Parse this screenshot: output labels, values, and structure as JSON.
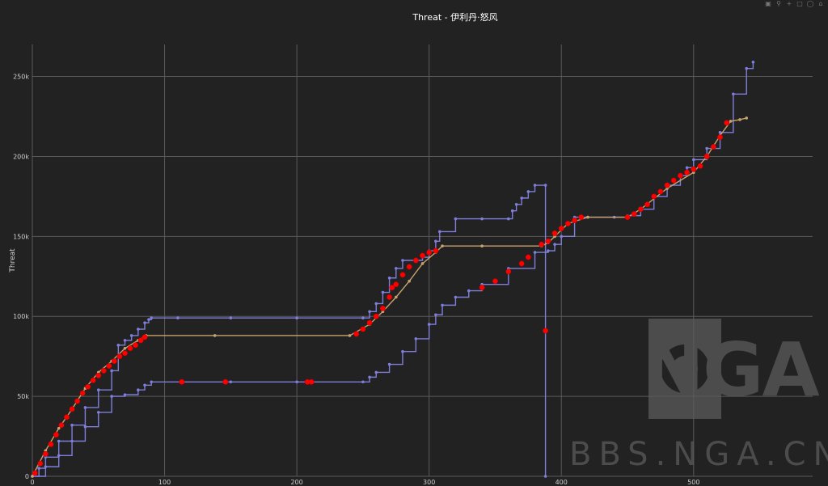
{
  "toolbar": {
    "icons": [
      "camera-icon",
      "zoom-icon",
      "plus-icon",
      "box-select-icon",
      "lasso-icon",
      "home-icon"
    ]
  },
  "watermark": {
    "logo": "NGA",
    "site": "BBS.NGA.CN"
  },
  "colors": {
    "blue": "#7f7fdb",
    "tan": "#c9a36e",
    "red": "#ff0000"
  },
  "chart_data": {
    "type": "line",
    "title": "Threat - 伊利丹·怒风",
    "xlabel": "",
    "ylabel": "Threat",
    "xlim": [
      0,
      590
    ],
    "ylim": [
      0,
      270000
    ],
    "x_ticks": [
      0,
      100,
      200,
      300,
      400,
      500
    ],
    "x_tick_labels": [
      "0",
      "100",
      "200",
      "300",
      "400",
      "500"
    ],
    "y_ticks": [
      0,
      50000,
      100000,
      150000,
      200000,
      250000
    ],
    "y_tick_labels": [
      "0",
      "50k",
      "100k",
      "150k",
      "200k",
      "250k"
    ],
    "grid": true,
    "series": [
      {
        "color": "#7f7fdb",
        "step": true,
        "x": [
          0,
          5,
          10,
          20,
          30,
          40,
          50,
          60,
          65,
          70,
          75,
          80,
          85,
          88,
          90,
          110,
          150,
          200,
          250,
          255,
          260,
          265,
          270,
          275,
          280,
          290,
          295,
          300,
          305,
          308,
          320,
          340,
          360,
          363,
          366,
          370,
          375,
          380,
          388,
          388
        ],
        "y": [
          0,
          5000,
          12000,
          22000,
          32000,
          43000,
          54000,
          66000,
          82000,
          85000,
          88000,
          92000,
          96000,
          98000,
          99000,
          99000,
          99000,
          99000,
          99000,
          103000,
          108000,
          115000,
          124000,
          130000,
          135000,
          135000,
          137000,
          141000,
          147000,
          153000,
          161000,
          161000,
          161000,
          166000,
          170000,
          174000,
          178000,
          182000,
          182000,
          0
        ]
      },
      {
        "color": "#7f7fdb",
        "step": true,
        "x": [
          0,
          10,
          20,
          30,
          40,
          50,
          60,
          70,
          80,
          85,
          90,
          150,
          200,
          250,
          255,
          260,
          270,
          280,
          290,
          300,
          305,
          310,
          320,
          330,
          340,
          360,
          380,
          390,
          395,
          400,
          410,
          420,
          440,
          450,
          460,
          470,
          480,
          490,
          495,
          500,
          510,
          520,
          530,
          540,
          545
        ],
        "y": [
          0,
          6000,
          13000,
          22000,
          31000,
          40000,
          50000,
          51000,
          54000,
          57000,
          59000,
          59000,
          59000,
          59000,
          62000,
          65000,
          70000,
          78000,
          86000,
          95000,
          101000,
          107000,
          112000,
          116000,
          120000,
          130000,
          140000,
          141000,
          145000,
          150000,
          162000,
          162000,
          162000,
          163000,
          167000,
          175000,
          182000,
          188000,
          193000,
          198000,
          205000,
          215000,
          239000,
          255000,
          259000
        ]
      },
      {
        "color": "#c9a36e",
        "step": false,
        "x": [
          0,
          10,
          20,
          30,
          40,
          50,
          60,
          70,
          80,
          86,
          138,
          240,
          255,
          265,
          275,
          285,
          295,
          305,
          310,
          340,
          385,
          390,
          395,
          405,
          420,
          450,
          460,
          480,
          500,
          510,
          520,
          528,
          535,
          540
        ],
        "y": [
          0,
          16000,
          30000,
          42000,
          55000,
          65000,
          72000,
          80000,
          85000,
          88000,
          88000,
          88000,
          95000,
          103000,
          112000,
          122000,
          133000,
          140000,
          144000,
          144000,
          144000,
          146000,
          150000,
          158000,
          162000,
          162000,
          167000,
          180000,
          190000,
          200000,
          213000,
          222000,
          223000,
          224000
        ]
      }
    ],
    "markers": {
      "color": "#ff0000",
      "x": [
        2,
        6,
        10,
        14,
        18,
        22,
        26,
        30,
        34,
        38,
        42,
        46,
        50,
        54,
        58,
        62,
        66,
        70,
        74,
        78,
        82,
        85,
        113,
        146,
        208,
        211,
        245,
        250,
        255,
        260,
        265,
        270,
        272,
        275,
        280,
        285,
        290,
        295,
        300,
        305,
        340,
        350,
        360,
        370,
        375,
        385,
        388,
        390,
        395,
        400,
        405,
        410,
        415,
        450,
        455,
        460,
        465,
        470,
        475,
        480,
        485,
        490,
        495,
        500,
        505,
        510,
        515,
        520,
        525
      ],
      "y": [
        2000,
        8000,
        14000,
        20000,
        26000,
        32000,
        37000,
        42000,
        47000,
        52000,
        56000,
        60000,
        63000,
        66000,
        69000,
        72000,
        75000,
        77000,
        80000,
        82000,
        85000,
        87000,
        59000,
        59000,
        59000,
        59000,
        89000,
        92000,
        96000,
        100000,
        105000,
        112000,
        118000,
        120000,
        126000,
        131000,
        135000,
        138000,
        140000,
        141000,
        118000,
        122000,
        128000,
        133000,
        137000,
        145000,
        91000,
        147000,
        152000,
        155000,
        158000,
        160000,
        162000,
        162000,
        164000,
        167000,
        170000,
        175000,
        178000,
        182000,
        185000,
        188000,
        190000,
        192000,
        194000,
        200000,
        206000,
        212000,
        221000
      ]
    }
  }
}
